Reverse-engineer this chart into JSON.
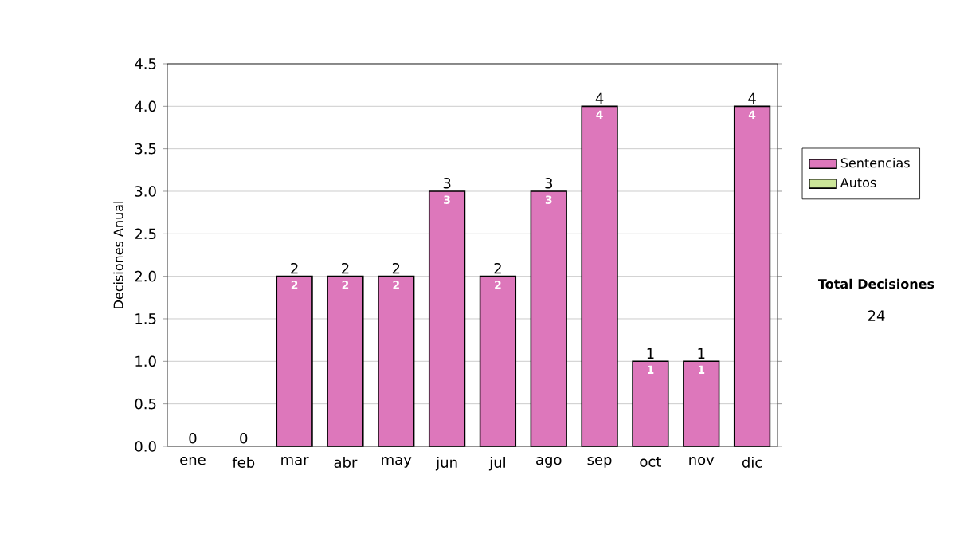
{
  "chart_data": {
    "type": "bar",
    "stacked": true,
    "ylabel": "Decisiones Anual",
    "categories": [
      "ene",
      "feb",
      "mar",
      "abr",
      "may",
      "jun",
      "jul",
      "ago",
      "sep",
      "oct",
      "nov",
      "dic"
    ],
    "series": [
      {
        "name": "Sentencias",
        "color": "#dd77bb",
        "values": [
          0,
          0,
          2,
          2,
          2,
          3,
          2,
          3,
          4,
          1,
          1,
          4
        ],
        "value_labels": [
          null,
          null,
          "2",
          "2",
          "2",
          "3",
          "2",
          "3",
          "4",
          "1",
          "1",
          "4"
        ]
      },
      {
        "name": "Autos",
        "color": "#cce699",
        "values": [
          0,
          0,
          0,
          0,
          0,
          0,
          0,
          0,
          0,
          0,
          0,
          0
        ]
      }
    ],
    "totals": [
      "0",
      "0",
      "2",
      "2",
      "2",
      "3",
      "2",
      "3",
      "4",
      "1",
      "1",
      "4"
    ],
    "ylim": [
      0,
      4.5
    ],
    "yticks": [
      {
        "value": 0,
        "label": "0.0"
      },
      {
        "value": 0.5,
        "label": "0.5"
      },
      {
        "value": 1,
        "label": "1.0"
      },
      {
        "value": 1.5,
        "label": "1.5"
      },
      {
        "value": 2,
        "label": "2.0"
      },
      {
        "value": 2.5,
        "label": "2.5"
      },
      {
        "value": 3,
        "label": "3.0"
      },
      {
        "value": 3.5,
        "label": "3.5"
      },
      {
        "value": 4,
        "label": "4.0"
      },
      {
        "value": 4.5,
        "label": "4.5"
      }
    ],
    "grid": "y",
    "legend": "right",
    "annotations": [
      "Total Decisiones",
      "24"
    ]
  }
}
